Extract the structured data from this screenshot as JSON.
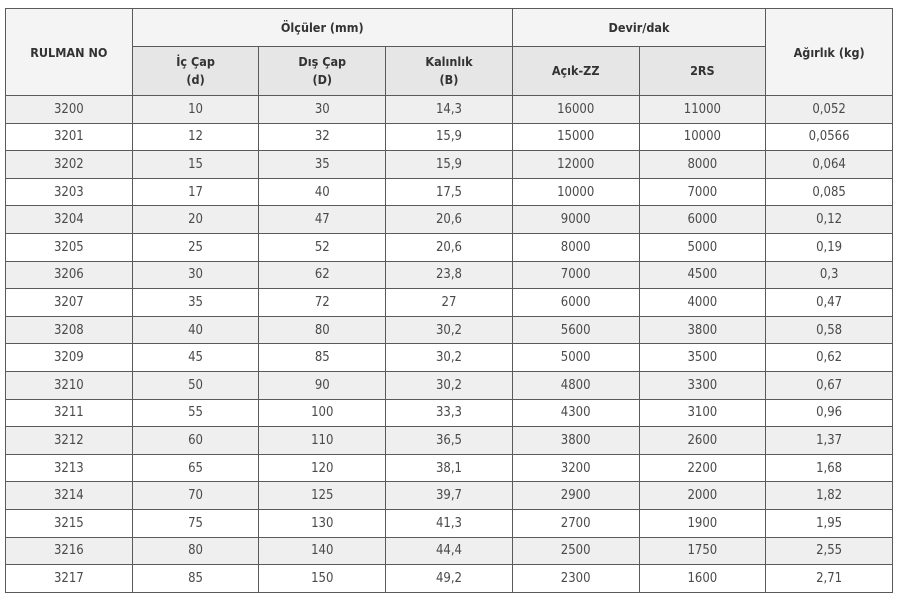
{
  "header": {
    "rulman_no": "RULMAN NO",
    "olculer": "Ölçüler (mm)",
    "devir": "Devir/dak",
    "agirlik": "Ağırlık (kg)",
    "ic_cap": [
      "İç Çap",
      "(d)"
    ],
    "dis_cap": [
      "Dış Çap",
      "(D)"
    ],
    "kalinlik": [
      "Kalınlık",
      "(B)"
    ],
    "acik_zz": "Açık-ZZ",
    "rs2": "2RS"
  },
  "rows": [
    [
      "3200",
      "10",
      "30",
      "14,3",
      "16000",
      "11000",
      "0,052"
    ],
    [
      "3201",
      "12",
      "32",
      "15,9",
      "15000",
      "10000",
      "0,0566"
    ],
    [
      "3202",
      "15",
      "35",
      "15,9",
      "12000",
      "8000",
      "0,064"
    ],
    [
      "3203",
      "17",
      "40",
      "17,5",
      "10000",
      "7000",
      "0,085"
    ],
    [
      "3204",
      "20",
      "47",
      "20,6",
      "9000",
      "6000",
      "0,12"
    ],
    [
      "3205",
      "25",
      "52",
      "20,6",
      "8000",
      "5000",
      "0,19"
    ],
    [
      "3206",
      "30",
      "62",
      "23,8",
      "7000",
      "4500",
      "0,3"
    ],
    [
      "3207",
      "35",
      "72",
      "27",
      "6000",
      "4000",
      "0,47"
    ],
    [
      "3208",
      "40",
      "80",
      "30,2",
      "5600",
      "3800",
      "0,58"
    ],
    [
      "3209",
      "45",
      "85",
      "30,2",
      "5000",
      "3500",
      "0,62"
    ],
    [
      "3210",
      "50",
      "90",
      "30,2",
      "4800",
      "3300",
      "0,67"
    ],
    [
      "3211",
      "55",
      "100",
      "33,3",
      "4300",
      "3100",
      "0,96"
    ],
    [
      "3212",
      "60",
      "110",
      "36,5",
      "3800",
      "2600",
      "1,37"
    ],
    [
      "3213",
      "65",
      "120",
      "38,1",
      "3200",
      "2200",
      "1,68"
    ],
    [
      "3214",
      "70",
      "125",
      "39,7",
      "2900",
      "2000",
      "1,82"
    ],
    [
      "3215",
      "75",
      "130",
      "41,3",
      "2700",
      "1900",
      "1,95"
    ],
    [
      "3216",
      "80",
      "140",
      "44,4",
      "2500",
      "1750",
      "2,55"
    ],
    [
      "3217",
      "85",
      "150",
      "49,2",
      "2300",
      "1600",
      "2,71"
    ]
  ]
}
